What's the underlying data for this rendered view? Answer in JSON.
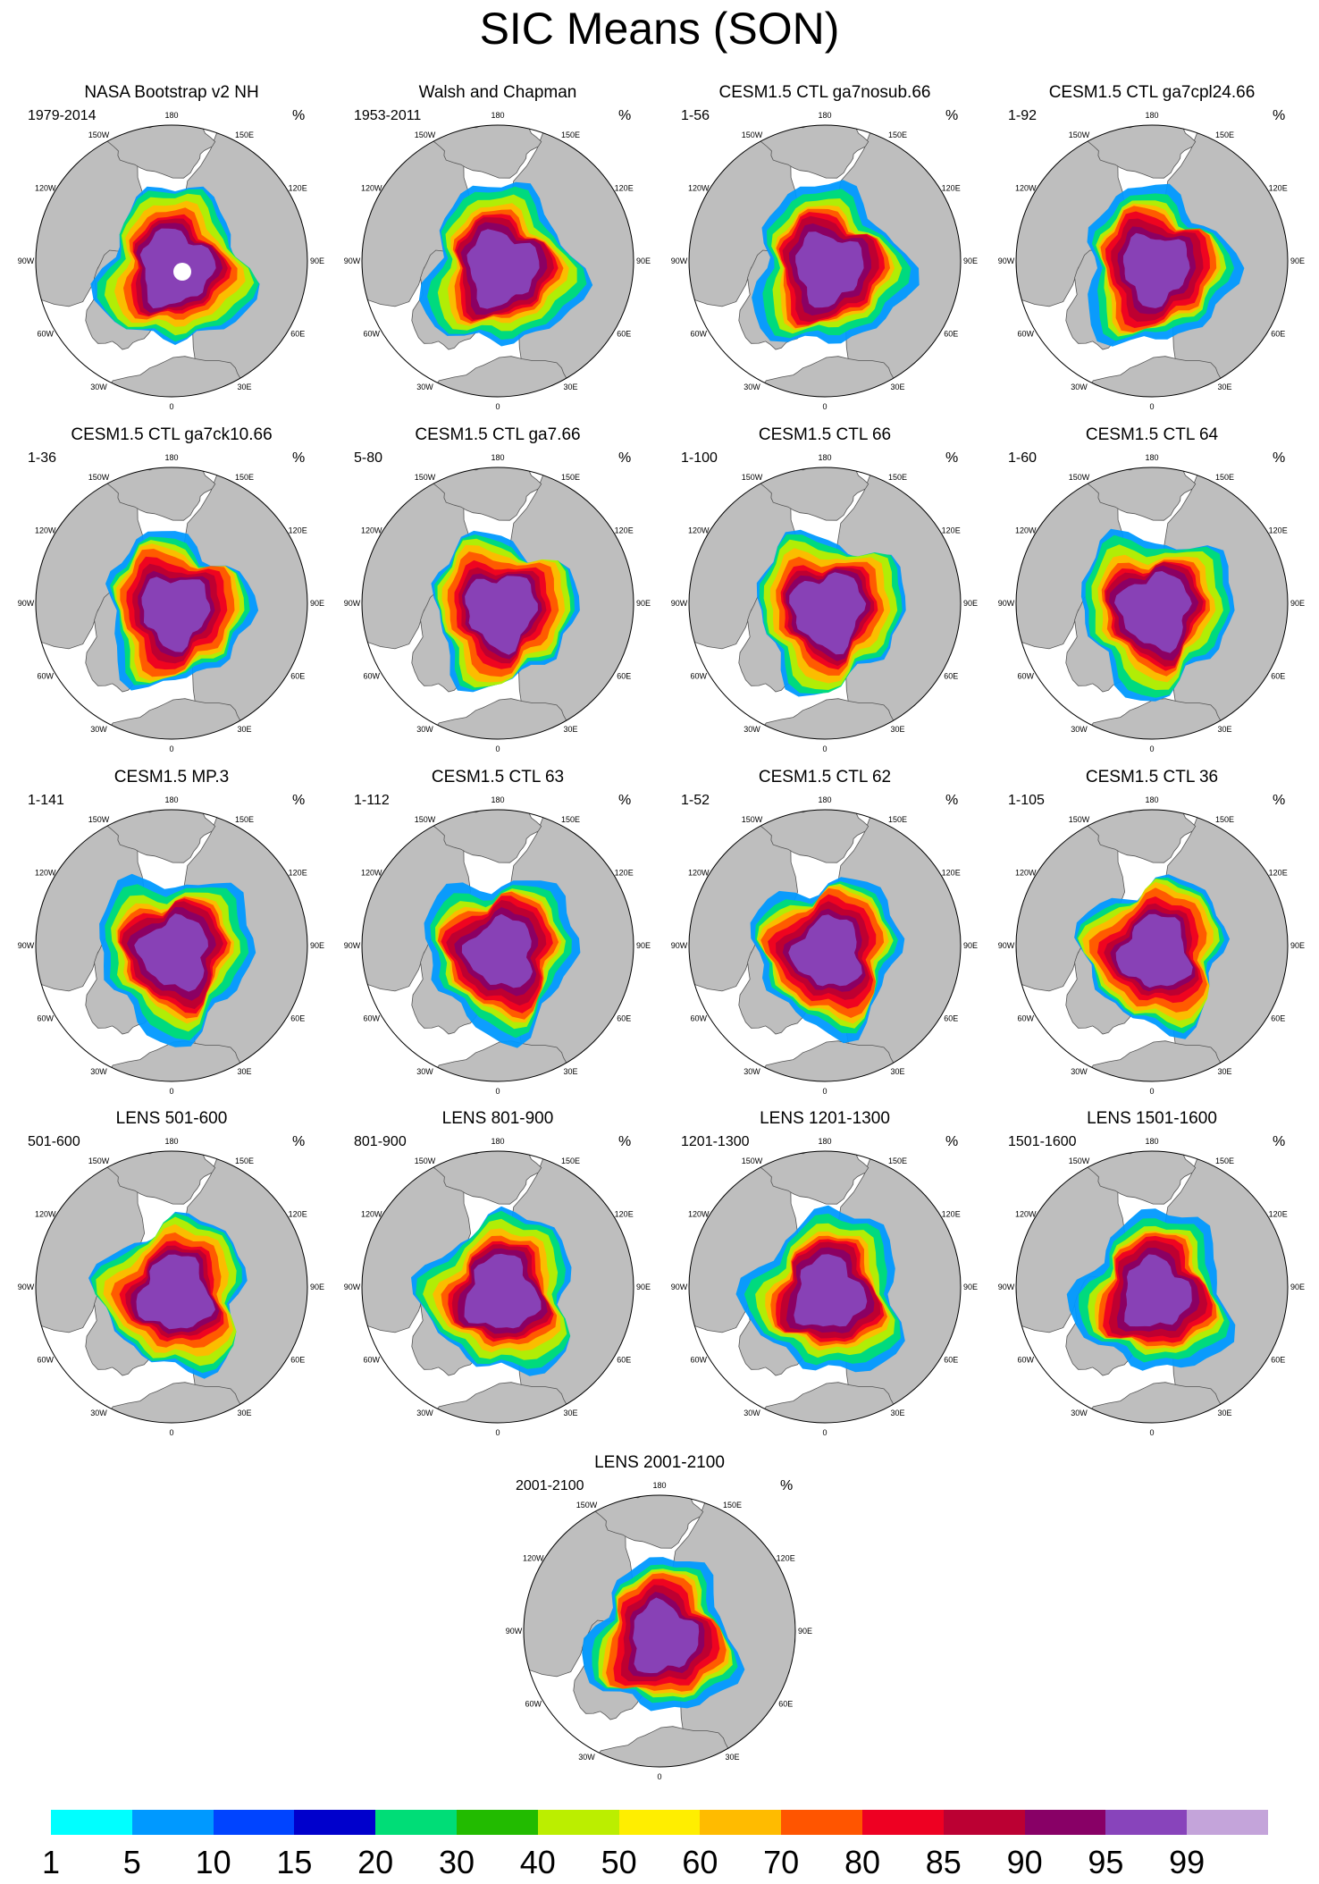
{
  "title": "SIC Means (SON)",
  "units": "%",
  "longitude_labels": [
    "180",
    "150E",
    "120E",
    "90E",
    "60E",
    "30E",
    "0",
    "30W",
    "60W",
    "90W",
    "120W",
    "150W"
  ],
  "panels": [
    {
      "title": "NASA Bootstrap v2 NH",
      "years": "1979-2014"
    },
    {
      "title": "Walsh and Chapman",
      "years": "1953-2011"
    },
    {
      "title": "CESM1.5 CTL ga7nosub.66",
      "years": "1-56"
    },
    {
      "title": "CESM1.5 CTL ga7cpl24.66",
      "years": "1-92"
    },
    {
      "title": "CESM1.5 CTL ga7ck10.66",
      "years": "1-36"
    },
    {
      "title": "CESM1.5 CTL ga7.66",
      "years": "5-80"
    },
    {
      "title": "CESM1.5 CTL 66",
      "years": "1-100"
    },
    {
      "title": "CESM1.5 CTL 64",
      "years": "1-60"
    },
    {
      "title": "CESM1.5 MP.3",
      "years": "1-141"
    },
    {
      "title": "CESM1.5 CTL 63",
      "years": "1-112"
    },
    {
      "title": "CESM1.5 CTL 62",
      "years": "1-52"
    },
    {
      "title": "CESM1.5 CTL 36",
      "years": "1-105"
    },
    {
      "title": "LENS 501-600",
      "years": "501-600"
    },
    {
      "title": "LENS 801-900",
      "years": "801-900"
    },
    {
      "title": "LENS 1201-1300",
      "years": "1201-1300"
    },
    {
      "title": "LENS 1501-1600",
      "years": "1501-1600"
    },
    {
      "title": "LENS 2001-2100",
      "years": "2001-2100"
    }
  ],
  "colorbar": {
    "colors": [
      "#00ffff",
      "#0099ff",
      "#0044ff",
      "#0000cc",
      "#00dd77",
      "#22bb00",
      "#bbee00",
      "#ffee00",
      "#ffbb00",
      "#ff5500",
      "#ee0022",
      "#bb0033",
      "#880066",
      "#8844bb",
      "#c4a4da"
    ],
    "labels": [
      "1",
      "5",
      "10",
      "15",
      "20",
      "30",
      "40",
      "50",
      "60",
      "70",
      "80",
      "85",
      "90",
      "95",
      "99"
    ]
  },
  "colors": {
    "land": "#bebebe",
    "ocean": "#ffffff",
    "coast": "#555555"
  }
}
